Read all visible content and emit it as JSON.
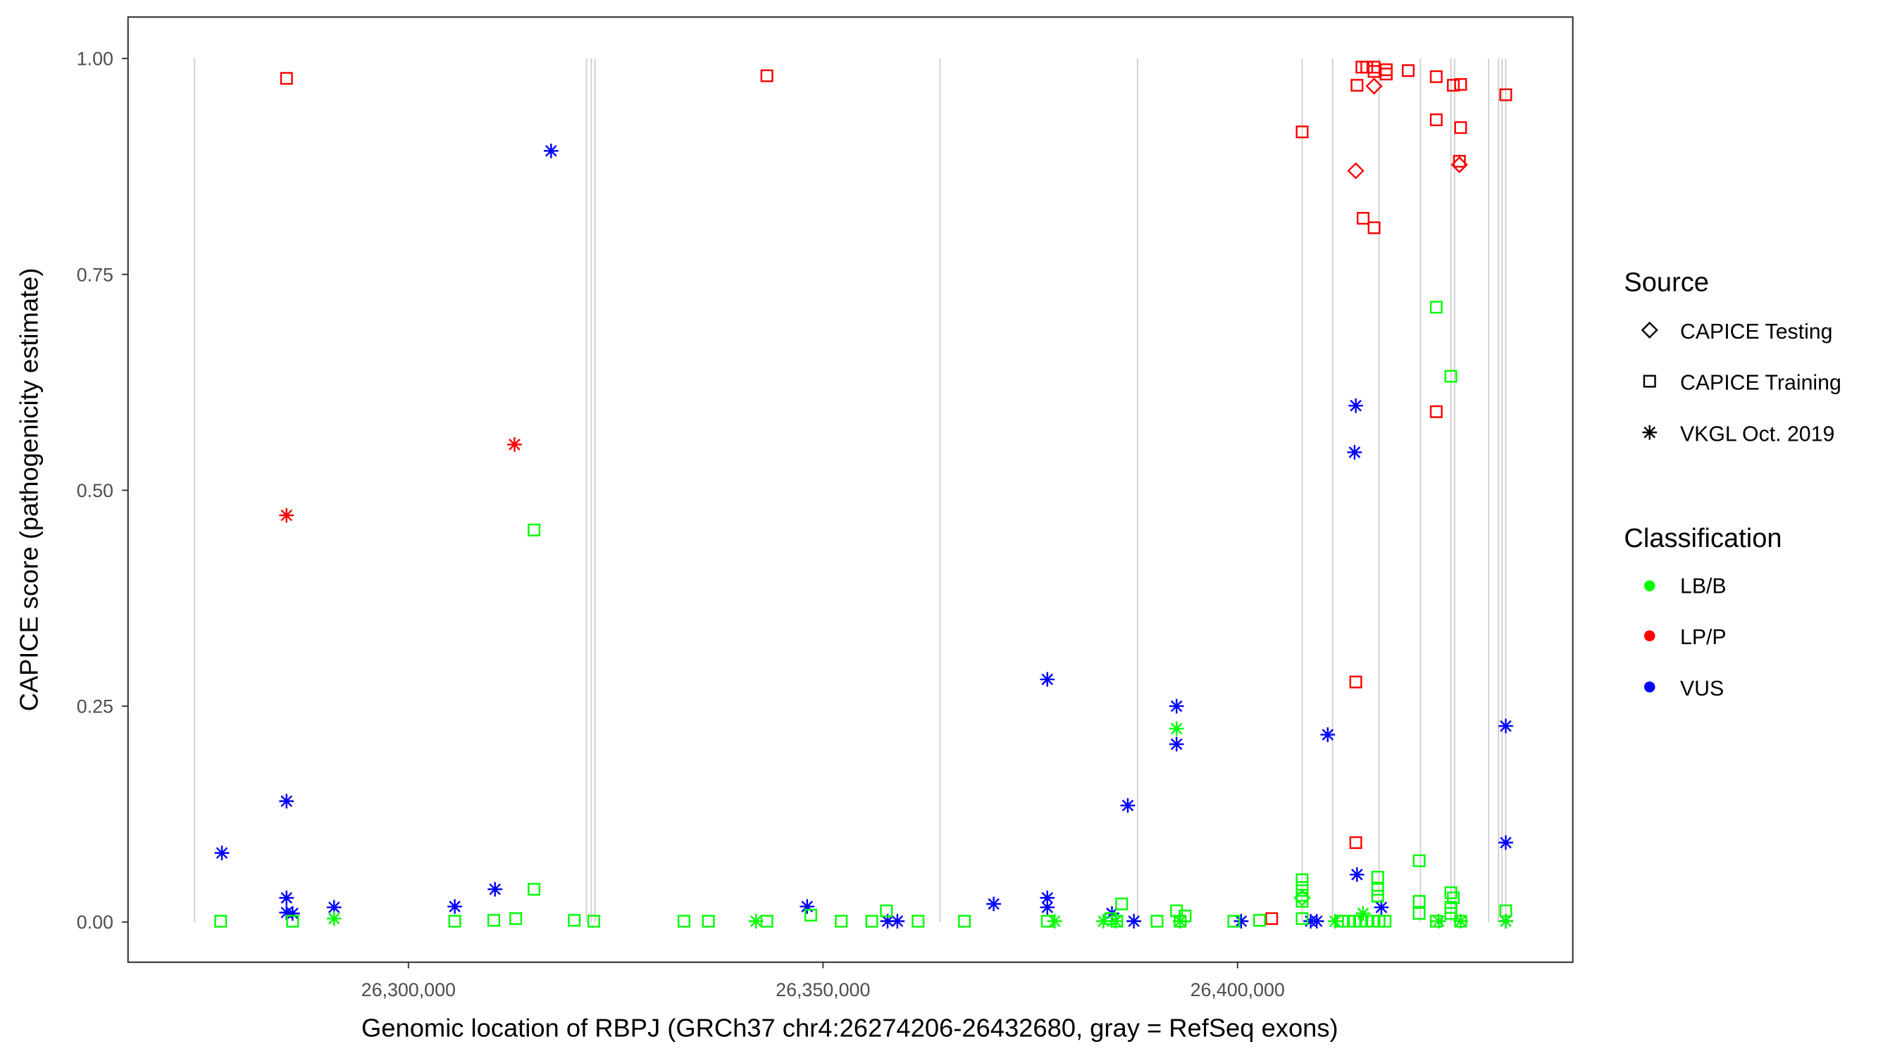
{
  "chart_data": {
    "type": "scatter",
    "xlabel": "Genomic location of RBPJ (GRCh37 chr4:26274206-26432680, gray = RefSeq exons)",
    "ylabel": "CAPICE score (pathogenicity estimate)",
    "xlim": [
      26266176,
      26440441
    ],
    "ylim": [
      -0.0465,
      1.048
    ],
    "grid": false,
    "x_ticks": [
      {
        "value": 26300000,
        "label": "26,300,000"
      },
      {
        "value": 26350000,
        "label": "26,350,000"
      },
      {
        "value": 26400000,
        "label": "26,400,000"
      }
    ],
    "y_ticks": [
      {
        "value": 0,
        "label": "0.00"
      },
      {
        "value": 0.25,
        "label": "0.25"
      },
      {
        "value": 0.5,
        "label": "0.50"
      },
      {
        "value": 0.75,
        "label": "0.75"
      },
      {
        "value": 1,
        "label": "1.00"
      }
    ],
    "exon_color": "#cccccc",
    "exons": [
      26274206,
      26321471,
      26322059,
      26322500,
      26364118,
      26387941,
      26407794,
      26411471,
      26417059,
      26422059,
      26425735,
      26426176,
      26430294,
      26431471,
      26431912,
      26432353
    ],
    "legend": {
      "placement": "right",
      "source_title": "Source",
      "sources": [
        {
          "key": "testing",
          "label": "CAPICE Testing",
          "shape": "diamond"
        },
        {
          "key": "training",
          "label": "CAPICE Training",
          "shape": "square"
        },
        {
          "key": "vkgl",
          "label": "VKGL Oct. 2019",
          "shape": "asterisk"
        }
      ],
      "class_title": "Classification",
      "classes": [
        {
          "key": "LB/B",
          "label": "LB/B",
          "color": "#00ff00"
        },
        {
          "key": "LP/P",
          "label": "LP/P",
          "color": "#ff0000"
        },
        {
          "key": "VUS",
          "label": "VUS",
          "color": "#0000ff"
        }
      ]
    },
    "points": [
      [
        26285294,
        0.977,
        "training",
        "LP/P"
      ],
      [
        26343235,
        0.98,
        "training",
        "LP/P"
      ],
      [
        26407794,
        0.915,
        "training",
        "LP/P"
      ],
      [
        26414412,
        0.969,
        "training",
        "LP/P"
      ],
      [
        26415000,
        0.99,
        "training",
        "LP/P"
      ],
      [
        26415588,
        0.99,
        "training",
        "LP/P"
      ],
      [
        26416471,
        0.99,
        "training",
        "LP/P"
      ],
      [
        26416471,
        0.985,
        "training",
        "LP/P"
      ],
      [
        26417941,
        0.987,
        "training",
        "LP/P"
      ],
      [
        26417941,
        0.982,
        "training",
        "LP/P"
      ],
      [
        26420588,
        0.986,
        "training",
        "LP/P"
      ],
      [
        26423971,
        0.979,
        "training",
        "LP/P"
      ],
      [
        26426029,
        0.969,
        "training",
        "LP/P"
      ],
      [
        26426912,
        0.97,
        "training",
        "LP/P"
      ],
      [
        26423971,
        0.929,
        "training",
        "LP/P"
      ],
      [
        26426912,
        0.92,
        "training",
        "LP/P"
      ],
      [
        26426765,
        0.881,
        "training",
        "LP/P"
      ],
      [
        26432353,
        0.958,
        "training",
        "LP/P"
      ],
      [
        26415147,
        0.815,
        "training",
        "LP/P"
      ],
      [
        26416471,
        0.804,
        "training",
        "LP/P"
      ],
      [
        26423971,
        0.591,
        "training",
        "LP/P"
      ],
      [
        26414265,
        0.278,
        "training",
        "LP/P"
      ],
      [
        26414265,
        0.092,
        "training",
        "LP/P"
      ],
      [
        26404118,
        0.004,
        "training",
        "LP/P"
      ],
      [
        26416471,
        0.968,
        "testing",
        "LP/P"
      ],
      [
        26414265,
        0.87,
        "testing",
        "LP/P"
      ],
      [
        26426765,
        0.877,
        "testing",
        "LP/P"
      ],
      [
        26285294,
        0.471,
        "vkgl",
        "LP/P"
      ],
      [
        26312794,
        0.553,
        "vkgl",
        "LP/P"
      ],
      [
        26317206,
        0.893,
        "vkgl",
        "VUS"
      ],
      [
        26277500,
        0.08,
        "vkgl",
        "VUS"
      ],
      [
        26285294,
        0.14,
        "vkgl",
        "VUS"
      ],
      [
        26285294,
        0.028,
        "vkgl",
        "VUS"
      ],
      [
        26285294,
        0.011,
        "vkgl",
        "VUS"
      ],
      [
        26286029,
        0.01,
        "vkgl",
        "VUS"
      ],
      [
        26291029,
        0.017,
        "vkgl",
        "VUS"
      ],
      [
        26305588,
        0.018,
        "vkgl",
        "VUS"
      ],
      [
        26310441,
        0.038,
        "vkgl",
        "VUS"
      ],
      [
        26348088,
        0.018,
        "vkgl",
        "VUS"
      ],
      [
        26357794,
        0.001,
        "vkgl",
        "VUS"
      ],
      [
        26358971,
        0.001,
        "vkgl",
        "VUS"
      ],
      [
        26370588,
        0.021,
        "vkgl",
        "VUS"
      ],
      [
        26377059,
        0.281,
        "vkgl",
        "VUS"
      ],
      [
        26377059,
        0.028,
        "vkgl",
        "VUS"
      ],
      [
        26377059,
        0.017,
        "vkgl",
        "VUS"
      ],
      [
        26386765,
        0.135,
        "vkgl",
        "VUS"
      ],
      [
        26384853,
        0.01,
        "vkgl",
        "VUS"
      ],
      [
        26387500,
        0.001,
        "vkgl",
        "VUS"
      ],
      [
        26392647,
        0.25,
        "vkgl",
        "VUS"
      ],
      [
        26392647,
        0.206,
        "vkgl",
        "VUS"
      ],
      [
        26400441,
        0.001,
        "vkgl",
        "VUS"
      ],
      [
        26408824,
        0.001,
        "vkgl",
        "VUS"
      ],
      [
        26409559,
        0.001,
        "vkgl",
        "VUS"
      ],
      [
        26410882,
        0.217,
        "vkgl",
        "VUS"
      ],
      [
        26414265,
        0.598,
        "vkgl",
        "VUS"
      ],
      [
        26414118,
        0.544,
        "vkgl",
        "VUS"
      ],
      [
        26414412,
        0.055,
        "vkgl",
        "VUS"
      ],
      [
        26417353,
        0.017,
        "vkgl",
        "VUS"
      ],
      [
        26432353,
        0.227,
        "vkgl",
        "VUS"
      ],
      [
        26432353,
        0.092,
        "vkgl",
        "VUS"
      ],
      [
        26432353,
        0.001,
        "vkgl",
        "VUS"
      ],
      [
        26291029,
        0.004,
        "vkgl",
        "LB/B"
      ],
      [
        26341912,
        0.001,
        "vkgl",
        "LB/B"
      ],
      [
        26392647,
        0.224,
        "vkgl",
        "LB/B"
      ],
      [
        26377941,
        0.001,
        "vkgl",
        "LB/B"
      ],
      [
        26383824,
        0.001,
        "vkgl",
        "LB/B"
      ],
      [
        26385294,
        0.001,
        "vkgl",
        "LB/B"
      ],
      [
        26393088,
        0.001,
        "vkgl",
        "LB/B"
      ],
      [
        26411765,
        0.001,
        "vkgl",
        "LB/B"
      ],
      [
        26415147,
        0.01,
        "vkgl",
        "LB/B"
      ],
      [
        26424265,
        0.001,
        "vkgl",
        "LB/B"
      ],
      [
        26426912,
        0.001,
        "vkgl",
        "LB/B"
      ],
      [
        26432353,
        0.001,
        "vkgl",
        "LB/B"
      ],
      [
        26277353,
        0.001,
        "training",
        "LB/B"
      ],
      [
        26286029,
        0.001,
        "training",
        "LB/B"
      ],
      [
        26305588,
        0.001,
        "training",
        "LB/B"
      ],
      [
        26310294,
        0.002,
        "training",
        "LB/B"
      ],
      [
        26312941,
        0.004,
        "training",
        "LB/B"
      ],
      [
        26315147,
        0.454,
        "training",
        "LB/B"
      ],
      [
        26315147,
        0.038,
        "training",
        "LB/B"
      ],
      [
        26320000,
        0.002,
        "training",
        "LB/B"
      ],
      [
        26322353,
        0.001,
        "training",
        "LB/B"
      ],
      [
        26333235,
        0.001,
        "training",
        "LB/B"
      ],
      [
        26336176,
        0.001,
        "training",
        "LB/B"
      ],
      [
        26343235,
        0.001,
        "training",
        "LB/B"
      ],
      [
        26348529,
        0.008,
        "training",
        "LB/B"
      ],
      [
        26352206,
        0.001,
        "training",
        "LB/B"
      ],
      [
        26355882,
        0.001,
        "training",
        "LB/B"
      ],
      [
        26357647,
        0.013,
        "training",
        "LB/B"
      ],
      [
        26361471,
        0.001,
        "training",
        "LB/B"
      ],
      [
        26367059,
        0.001,
        "training",
        "LB/B"
      ],
      [
        26377059,
        0.001,
        "training",
        "LB/B"
      ],
      [
        26384706,
        0.004,
        "training",
        "LB/B"
      ],
      [
        26385441,
        0.001,
        "training",
        "LB/B"
      ],
      [
        26386029,
        0.021,
        "training",
        "LB/B"
      ],
      [
        26390294,
        0.001,
        "training",
        "LB/B"
      ],
      [
        26392647,
        0.013,
        "training",
        "LB/B"
      ],
      [
        26393676,
        0.007,
        "training",
        "LB/B"
      ],
      [
        26393088,
        0.001,
        "training",
        "LB/B"
      ],
      [
        26399559,
        0.001,
        "training",
        "LB/B"
      ],
      [
        26402647,
        0.002,
        "training",
        "LB/B"
      ],
      [
        26407794,
        0.049,
        "training",
        "LB/B"
      ],
      [
        26407794,
        0.04,
        "training",
        "LB/B"
      ],
      [
        26407794,
        0.031,
        "training",
        "LB/B"
      ],
      [
        26407794,
        0.024,
        "training",
        "LB/B"
      ],
      [
        26407794,
        0.004,
        "training",
        "LB/B"
      ],
      [
        26412647,
        0.001,
        "training",
        "LB/B"
      ],
      [
        26413382,
        0.001,
        "training",
        "LB/B"
      ],
      [
        26414118,
        0.001,
        "training",
        "LB/B"
      ],
      [
        26414853,
        0.001,
        "training",
        "LB/B"
      ],
      [
        26415588,
        0.001,
        "training",
        "LB/B"
      ],
      [
        26416324,
        0.001,
        "training",
        "LB/B"
      ],
      [
        26417059,
        0.001,
        "training",
        "LB/B"
      ],
      [
        26417794,
        0.001,
        "training",
        "LB/B"
      ],
      [
        26416912,
        0.052,
        "training",
        "LB/B"
      ],
      [
        26416912,
        0.038,
        "training",
        "LB/B"
      ],
      [
        26416912,
        0.03,
        "training",
        "LB/B"
      ],
      [
        26421912,
        0.071,
        "training",
        "LB/B"
      ],
      [
        26421912,
        0.024,
        "training",
        "LB/B"
      ],
      [
        26421912,
        0.01,
        "training",
        "LB/B"
      ],
      [
        26423971,
        0.712,
        "training",
        "LB/B"
      ],
      [
        26425735,
        0.632,
        "training",
        "LB/B"
      ],
      [
        26425735,
        0.034,
        "training",
        "LB/B"
      ],
      [
        26426029,
        0.028,
        "training",
        "LB/B"
      ],
      [
        26425735,
        0.017,
        "training",
        "LB/B"
      ],
      [
        26425735,
        0.01,
        "training",
        "LB/B"
      ],
      [
        26432353,
        0.013,
        "training",
        "LB/B"
      ],
      [
        26423971,
        0.001,
        "training",
        "LB/B"
      ],
      [
        26426912,
        0.001,
        "training",
        "LB/B"
      ],
      [
        26407794,
        0.028,
        "testing",
        "LB/B"
      ]
    ]
  }
}
